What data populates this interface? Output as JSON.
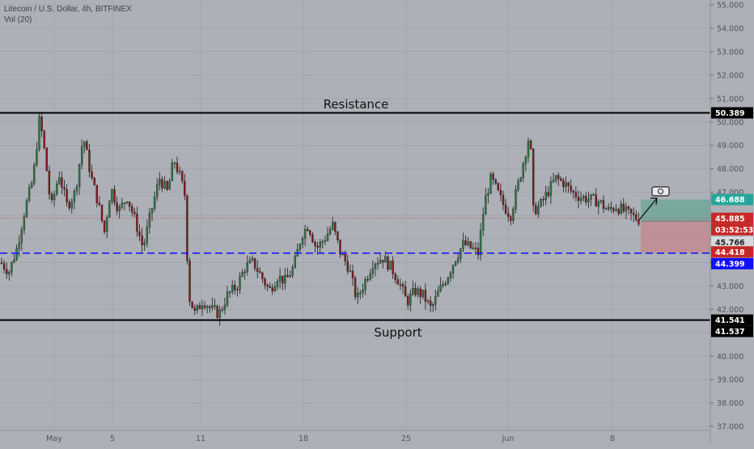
{
  "header": {
    "symbol_line": "Litecoin / U.S. Dollar, 4h, BITFINEX",
    "volume_line": "Vol (20)"
  },
  "annotations": {
    "resistance_label": "Resistance",
    "support_label": "Support"
  },
  "price_tags": {
    "resistance": "50.389",
    "take_profit": "46.688",
    "last_price": "45.885",
    "countdown": "03:52:53",
    "entry": "45.766",
    "stop_loss": "44.418",
    "blue_level": "44.399",
    "support_1": "41.541",
    "support_2": "41.537"
  },
  "colors": {
    "background": "#adb0b6",
    "grid": "#a3a6ac",
    "candle_up": "#2e7d4a",
    "candle_down": "#8b1a1a",
    "level_line": "#000000",
    "dashed_level": "#1a1aff",
    "profit_zone": "#6fa79a",
    "loss_zone": "#c28b8f",
    "last_price_tag": "#c62828",
    "take_profit_tag": "#26a69a"
  },
  "chart_data": {
    "type": "candlestick",
    "y_axis": {
      "ticks": [
        "55.000",
        "54.000",
        "53.000",
        "52.000",
        "51.000",
        "50.000",
        "49.000",
        "48.000",
        "47.000",
        "46.000",
        "45.000",
        "44.000",
        "43.000",
        "42.000",
        "41.000",
        "40.000",
        "39.000",
        "38.000",
        "37.000"
      ]
    },
    "x_axis": {
      "ticks": [
        "May",
        "5",
        "11",
        "18",
        "25",
        "Jun",
        "8"
      ]
    },
    "levels": [
      {
        "name": "Resistance",
        "price": 50.389,
        "style": "solid"
      },
      {
        "name": "Support",
        "price": 41.541,
        "style": "solid"
      },
      {
        "price": 44.399,
        "style": "dashed"
      }
    ],
    "position": {
      "entry": 45.766,
      "take_profit": 46.688,
      "stop_loss": 44.418
    },
    "path": [
      [
        0,
        44.0
      ],
      [
        10,
        43.6
      ],
      [
        20,
        44.6
      ],
      [
        30,
        46.3
      ],
      [
        40,
        47.6
      ],
      [
        48,
        50.2
      ],
      [
        55,
        48.5
      ],
      [
        62,
        46.3
      ],
      [
        72,
        47.8
      ],
      [
        82,
        46.4
      ],
      [
        92,
        47.0
      ],
      [
        102,
        49.4
      ],
      [
        112,
        47.6
      ],
      [
        120,
        46.6
      ],
      [
        128,
        45.3
      ],
      [
        136,
        47.2
      ],
      [
        146,
        46.2
      ],
      [
        156,
        46.8
      ],
      [
        166,
        45.8
      ],
      [
        176,
        44.6
      ],
      [
        186,
        46.2
      ],
      [
        196,
        47.6
      ],
      [
        206,
        47.0
      ],
      [
        214,
        48.4
      ],
      [
        222,
        47.6
      ],
      [
        228,
        46.8
      ],
      [
        232,
        42.6
      ],
      [
        240,
        41.8
      ],
      [
        250,
        42.4
      ],
      [
        260,
        42.0
      ],
      [
        270,
        41.8
      ],
      [
        280,
        42.6
      ],
      [
        292,
        43.0
      ],
      [
        302,
        43.8
      ],
      [
        312,
        44.0
      ],
      [
        322,
        43.4
      ],
      [
        332,
        42.8
      ],
      [
        342,
        43.4
      ],
      [
        352,
        43.2
      ],
      [
        362,
        43.8
      ],
      [
        372,
        45.2
      ],
      [
        380,
        45.6
      ],
      [
        390,
        44.6
      ],
      [
        400,
        45.0
      ],
      [
        410,
        45.6
      ],
      [
        420,
        44.4
      ],
      [
        430,
        43.8
      ],
      [
        440,
        42.4
      ],
      [
        450,
        43.2
      ],
      [
        460,
        44.0
      ],
      [
        472,
        44.2
      ],
      [
        482,
        43.8
      ],
      [
        492,
        43.2
      ],
      [
        502,
        42.3
      ],
      [
        512,
        42.8
      ],
      [
        522,
        42.6
      ],
      [
        532,
        42.0
      ],
      [
        542,
        42.8
      ],
      [
        552,
        43.4
      ],
      [
        562,
        44.2
      ],
      [
        572,
        44.8
      ],
      [
        582,
        44.6
      ],
      [
        590,
        44.4
      ],
      [
        598,
        46.6
      ],
      [
        606,
        47.6
      ],
      [
        614,
        47.0
      ],
      [
        622,
        46.4
      ],
      [
        630,
        46.0
      ],
      [
        640,
        47.4
      ],
      [
        648,
        48.6
      ],
      [
        654,
        49.6
      ],
      [
        658,
        46.2
      ],
      [
        666,
        46.4
      ],
      [
        676,
        47.0
      ],
      [
        686,
        47.6
      ],
      [
        696,
        47.4
      ],
      [
        706,
        47.0
      ],
      [
        716,
        46.8
      ],
      [
        728,
        46.7
      ],
      [
        740,
        46.6
      ],
      [
        750,
        46.2
      ],
      [
        760,
        46.4
      ],
      [
        770,
        46.2
      ],
      [
        780,
        46.0
      ],
      [
        790,
        45.8
      ]
    ]
  }
}
